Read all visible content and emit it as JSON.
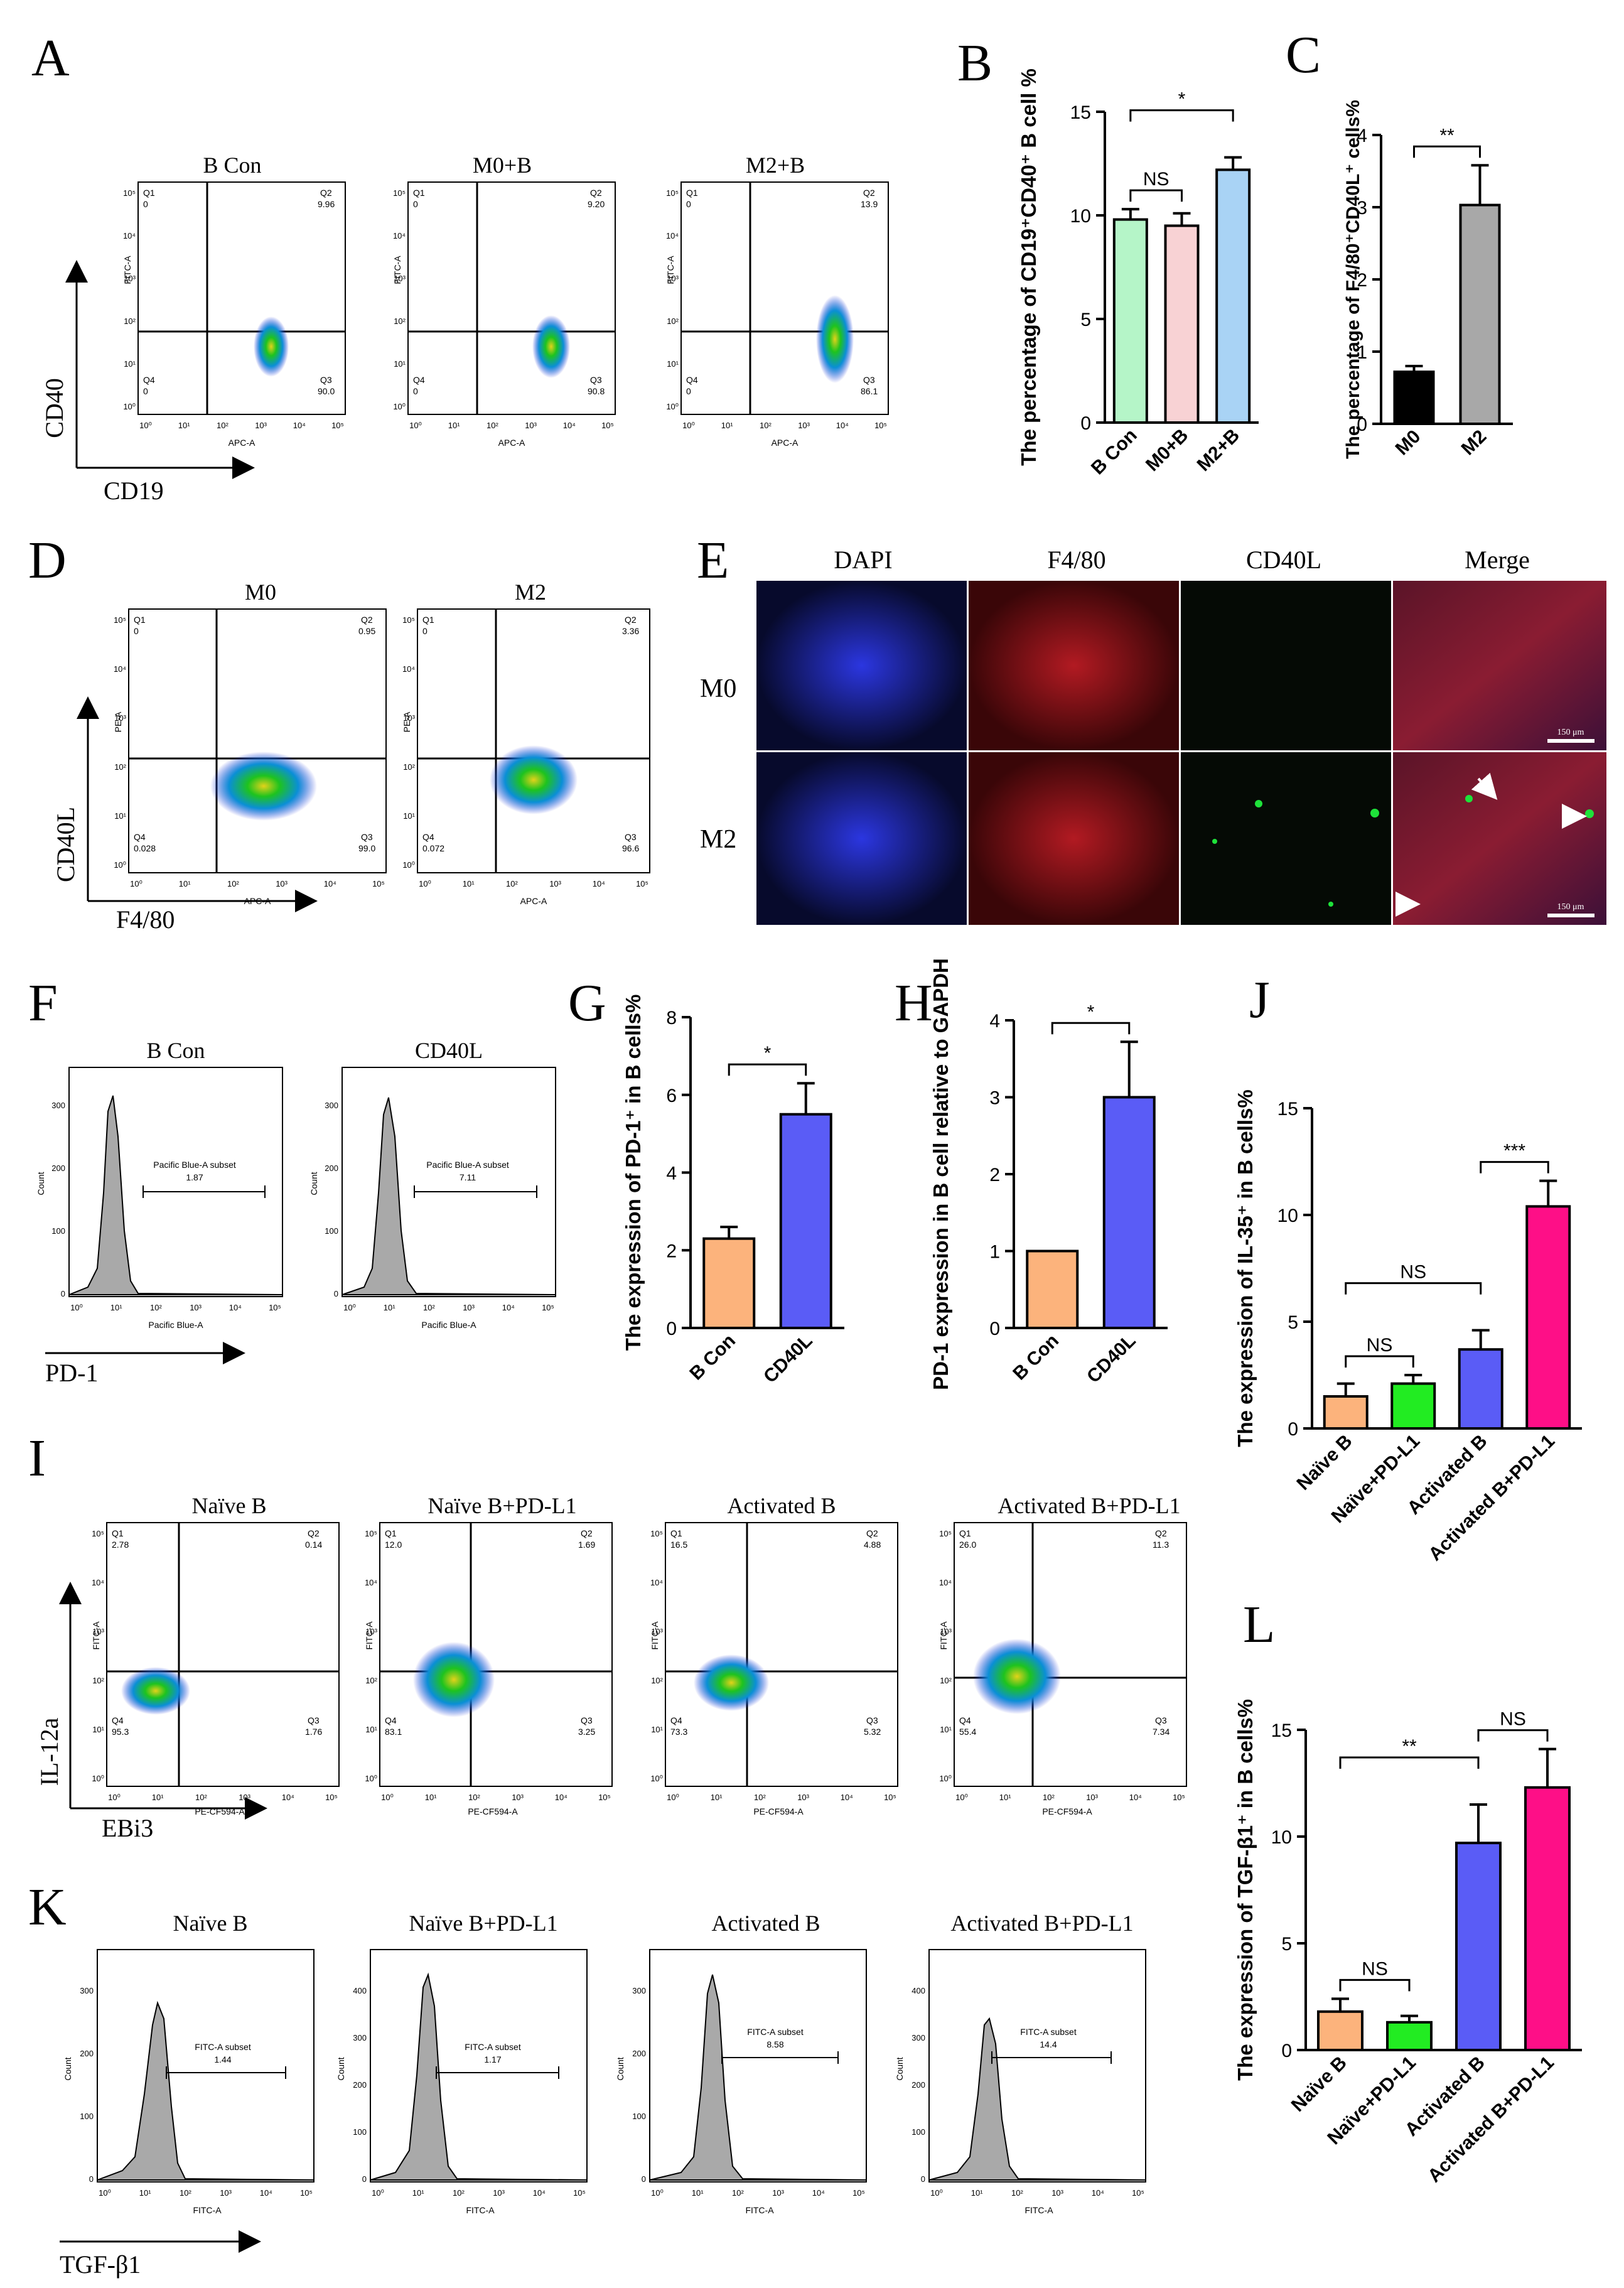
{
  "colors": {
    "ink": "#000000",
    "bar_green": "#b5f5c8",
    "bar_pink": "#f8d2d4",
    "bar_blue": "#a9d3f5",
    "bar_black": "#000000",
    "bar_gray": "#a8a8a8",
    "bar_orange": "#fcb37c",
    "bar_violet": "#5a5cf6",
    "bar_lime": "#22ec22",
    "bar_magenta": "#fe0f87",
    "flow_dense": "#1ec31e",
    "flow_mid": "#0a8fd6",
    "flow_sparse": "#1a2bd8",
    "histogram_fill": "#a9a9a9"
  },
  "panel_letters": [
    "A",
    "B",
    "C",
    "D",
    "E",
    "F",
    "G",
    "H",
    "I",
    "J",
    "K",
    "L"
  ],
  "flow_common": {
    "gate_labels": [
      "Q1",
      "Q2",
      "Q3",
      "Q4"
    ],
    "axis_ticks": [
      "10⁰",
      "10¹",
      "10²",
      "10³",
      "10⁴",
      "10⁵"
    ],
    "histogram_ylabel": "Count"
  },
  "panel_a": {
    "y_marker": "CD40",
    "x_marker": "CD19",
    "plots": [
      {
        "title": "B Con",
        "xlabel": "APC-A",
        "ylabel": "FITC-A",
        "q1": "0",
        "q2": "9.96",
        "q3": "90.0",
        "q4": "0"
      },
      {
        "title": "M0+B",
        "xlabel": "APC-A",
        "ylabel": "FITC-A",
        "q1": "0",
        "q2": "9.20",
        "q3": "90.8",
        "q4": "0"
      },
      {
        "title": "M2+B",
        "xlabel": "APC-A",
        "ylabel": "FITC-A",
        "q1": "0",
        "q2": "13.9",
        "q3": "86.1",
        "q4": "0"
      }
    ]
  },
  "panel_d": {
    "y_marker": "CD40L",
    "x_marker": "F4/80",
    "plots": [
      {
        "title": "M0",
        "xlabel": "APC-A",
        "ylabel": "PE-A",
        "q1": "0",
        "q2": "0.95",
        "q3": "99.0",
        "q4": "0.028"
      },
      {
        "title": "M2",
        "xlabel": "APC-A",
        "ylabel": "PE-A",
        "q1": "0",
        "q2": "3.36",
        "q3": "96.6",
        "q4": "0.072"
      }
    ]
  },
  "panel_e": {
    "columns": [
      "DAPI",
      "F4/80",
      "CD40L",
      "Merge"
    ],
    "rows": [
      "M0",
      "M2"
    ],
    "scale_bar": "150 μm"
  },
  "panel_f": {
    "x_marker": "PD-1",
    "plots": [
      {
        "title": "B Con",
        "xlabel": "Pacific Blue-A",
        "gate_label": "Pacific Blue-A subset",
        "gate_value": "1.87",
        "yticks": [
          "0",
          "100",
          "200",
          "300"
        ]
      },
      {
        "title": "CD40L",
        "xlabel": "Pacific Blue-A",
        "gate_label": "Pacific Blue-A subset",
        "gate_value": "7.11",
        "yticks": [
          "0",
          "100",
          "200",
          "300"
        ]
      }
    ]
  },
  "panel_i": {
    "y_marker": "IL-12a",
    "x_marker": "EBi3",
    "plots": [
      {
        "title": "Naïve B",
        "xlabel": "PE-CF594-A",
        "ylabel": "FITC-A",
        "q1": "2.78",
        "q2": "0.14",
        "q3": "1.76",
        "q4": "95.3"
      },
      {
        "title": "Naïve B+PD-L1",
        "xlabel": "PE-CF594-A",
        "ylabel": "FITC-A",
        "q1": "12.0",
        "q2": "1.69",
        "q3": "3.25",
        "q4": "83.1"
      },
      {
        "title": "Activated B",
        "xlabel": "PE-CF594-A",
        "ylabel": "FITC-A",
        "q1": "16.5",
        "q2": "4.88",
        "q3": "5.32",
        "q4": "73.3"
      },
      {
        "title": "Activated B+PD-L1",
        "xlabel": "PE-CF594-A",
        "ylabel": "FITC-A",
        "q1": "26.0",
        "q2": "11.3",
        "q3": "7.34",
        "q4": "55.4"
      }
    ]
  },
  "panel_k": {
    "x_marker": "TGF-β1",
    "plots": [
      {
        "title": "Naïve B",
        "xlabel": "FITC-A",
        "gate_label": "FITC-A subset",
        "gate_value": "1.44",
        "yticks": [
          "0",
          "100",
          "200",
          "300"
        ]
      },
      {
        "title": "Naïve B+PD-L1",
        "xlabel": "FITC-A",
        "gate_label": "FITC-A subset",
        "gate_value": "1.17",
        "yticks": [
          "0",
          "100",
          "200",
          "300",
          "400"
        ]
      },
      {
        "title": "Activated B",
        "xlabel": "FITC-A",
        "gate_label": "FITC-A subset",
        "gate_value": "8.58",
        "yticks": [
          "0",
          "100",
          "200",
          "300"
        ]
      },
      {
        "title": "Activated B+PD-L1",
        "xlabel": "FITC-A",
        "gate_label": "FITC-A subset",
        "gate_value": "14.4",
        "yticks": [
          "0",
          "100",
          "200",
          "300",
          "400"
        ]
      }
    ]
  },
  "chart_data": [
    {
      "panel": "B",
      "type": "bar",
      "ylabel": "The percentage of CD19⁺CD40⁺ B cell %",
      "categories": [
        "B Con",
        "M0+B",
        "M2+B"
      ],
      "values": [
        9.8,
        9.5,
        12.2
      ],
      "errors": [
        0.5,
        0.6,
        0.6
      ],
      "colors": [
        "#b5f5c8",
        "#f8d2d4",
        "#a9d3f5"
      ],
      "ylim": [
        0,
        15
      ],
      "yticks": [
        0,
        5,
        10,
        15
      ],
      "significance": [
        {
          "from": 0,
          "to": 1,
          "label": "NS"
        },
        {
          "from": 0,
          "to": 2,
          "label": "*"
        }
      ]
    },
    {
      "panel": "C",
      "type": "bar",
      "ylabel": "The percentage of F4/80⁺CD40L⁺ cells%",
      "categories": [
        "M0",
        "M2"
      ],
      "values": [
        0.72,
        3.03
      ],
      "errors": [
        0.08,
        0.55
      ],
      "colors": [
        "#000000",
        "#a8a8a8"
      ],
      "ylim": [
        0,
        4
      ],
      "yticks": [
        0,
        1,
        2,
        3,
        4
      ],
      "significance": [
        {
          "from": 0,
          "to": 1,
          "label": "**"
        }
      ]
    },
    {
      "panel": "G",
      "type": "bar",
      "ylabel": "The expression of PD-1⁺ in B cells%",
      "categories": [
        "B Con",
        "CD40L"
      ],
      "values": [
        2.3,
        5.5
      ],
      "errors": [
        0.3,
        0.8
      ],
      "colors": [
        "#fcb37c",
        "#5a5cf6"
      ],
      "ylim": [
        0,
        8
      ],
      "yticks": [
        0,
        2,
        4,
        6,
        8
      ],
      "significance": [
        {
          "from": 0,
          "to": 1,
          "label": "*"
        }
      ]
    },
    {
      "panel": "H",
      "type": "bar",
      "ylabel": "PD-1 expression in B cell relative to GAPDH",
      "categories": [
        "B Con",
        "CD40L"
      ],
      "values": [
        1.0,
        3.0
      ],
      "errors": [
        0.0,
        0.72
      ],
      "colors": [
        "#fcb37c",
        "#5a5cf6"
      ],
      "ylim": [
        0,
        4
      ],
      "yticks": [
        0,
        1,
        2,
        3,
        4
      ],
      "significance": [
        {
          "from": 0,
          "to": 1,
          "label": "*"
        }
      ]
    },
    {
      "panel": "J",
      "type": "bar",
      "ylabel": "The expression of IL-35⁺ in B cells%",
      "categories": [
        "Naïve B",
        "Naïve+PD-L1",
        "Activated B",
        "Activated B+PD-L1"
      ],
      "values": [
        1.5,
        2.1,
        3.7,
        10.4
      ],
      "errors": [
        0.6,
        0.4,
        0.9,
        1.2
      ],
      "colors": [
        "#fcb37c",
        "#22ec22",
        "#5a5cf6",
        "#fe0f87"
      ],
      "ylim": [
        0,
        15
      ],
      "yticks": [
        0,
        5,
        10,
        15
      ],
      "significance": [
        {
          "from": 0,
          "to": 1,
          "label": "NS"
        },
        {
          "from": 0,
          "to": 2,
          "label": "NS"
        },
        {
          "from": 2,
          "to": 3,
          "label": "***"
        }
      ]
    },
    {
      "panel": "L",
      "type": "bar",
      "ylabel": "The expression of TGF-β1⁺ in B cells%",
      "categories": [
        "Naïve B",
        "Naïve+PD-L1",
        "Activated B",
        "Activated B+PD-L1"
      ],
      "values": [
        1.8,
        1.3,
        9.7,
        12.3
      ],
      "errors": [
        0.6,
        0.3,
        1.8,
        1.8
      ],
      "colors": [
        "#fcb37c",
        "#22ec22",
        "#5a5cf6",
        "#fe0f87"
      ],
      "ylim": [
        0,
        15
      ],
      "yticks": [
        0,
        5,
        10,
        15
      ],
      "significance": [
        {
          "from": 0,
          "to": 1,
          "label": "NS"
        },
        {
          "from": 0,
          "to": 2,
          "label": "**"
        },
        {
          "from": 2,
          "to": 3,
          "label": "NS"
        }
      ]
    }
  ]
}
